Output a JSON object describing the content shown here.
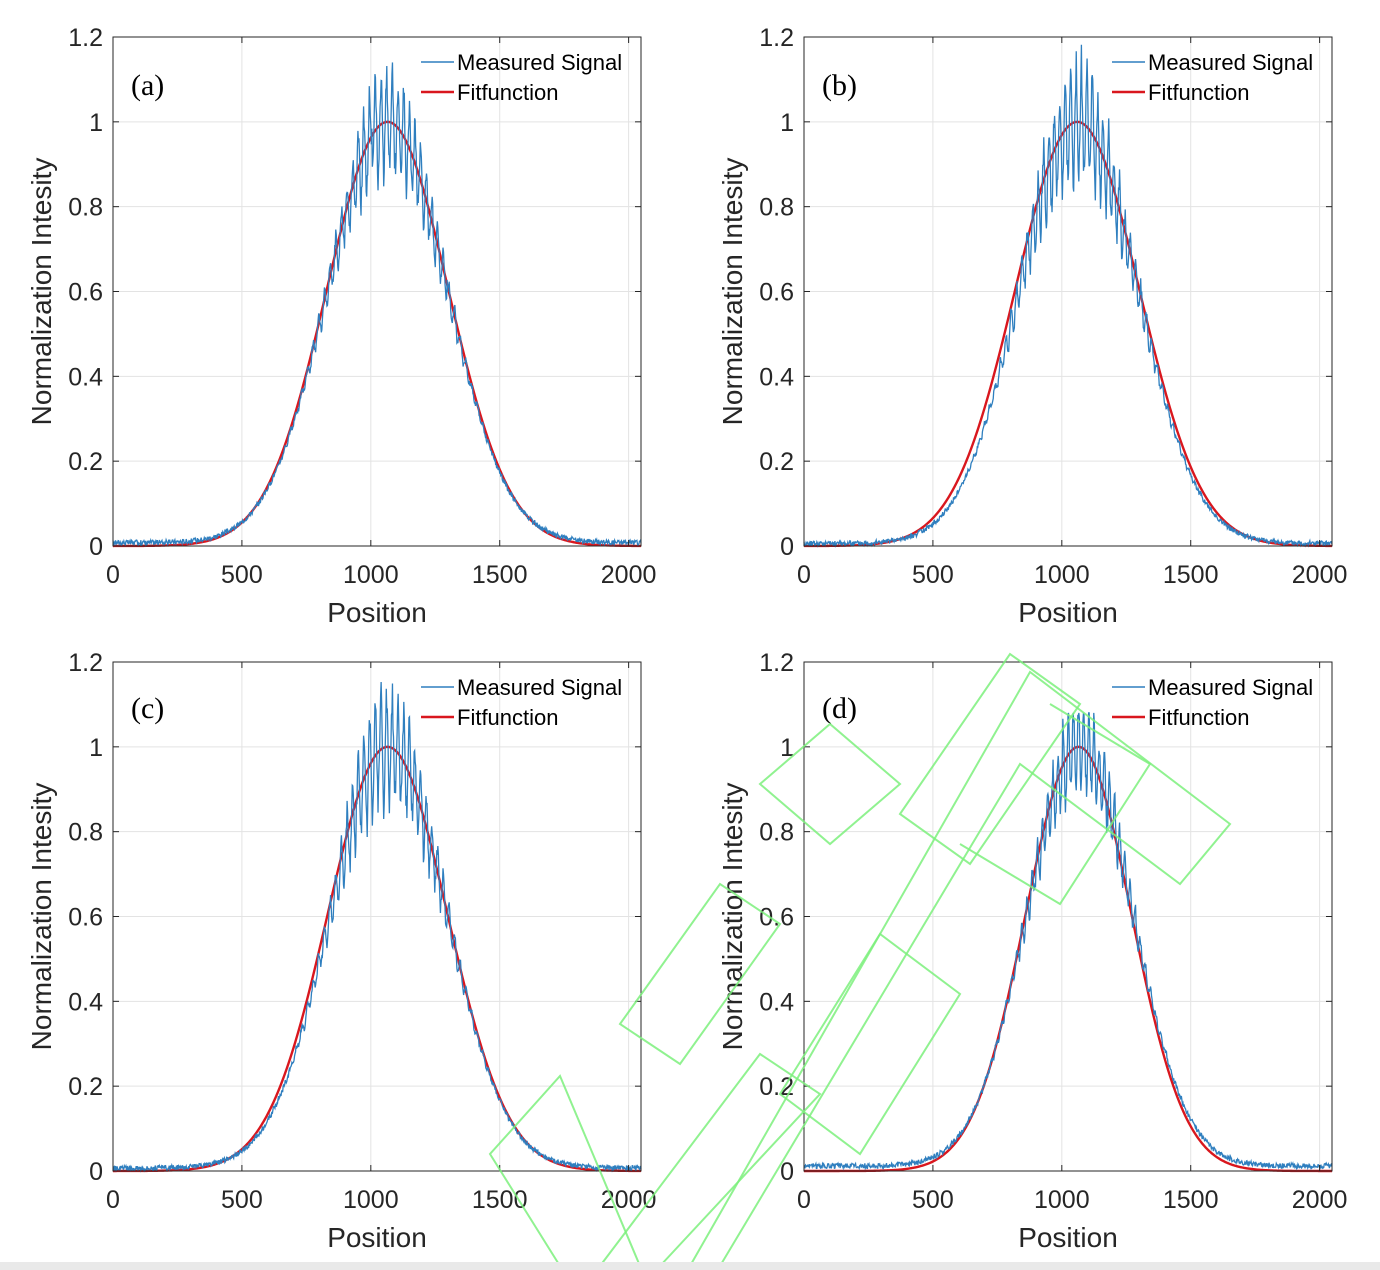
{
  "colors": {
    "measured": "#2f7fbf",
    "fit": "#d9171e",
    "grid": "#e3e3e3",
    "axis": "#262626"
  },
  "chart_data": [
    {
      "type": "line",
      "panel": "(a)",
      "xlabel": "Position",
      "ylabel": "Normalization Intesity",
      "xlim": [
        0,
        2048
      ],
      "ylim": [
        0,
        1.2
      ],
      "xticks": [
        0,
        500,
        1000,
        1500,
        2000
      ],
      "xtick_labels": [
        "0",
        "500",
        "1000",
        "1500",
        "2000"
      ],
      "yticks": [
        0,
        0.2,
        0.4,
        0.6,
        0.8,
        1,
        1.2
      ],
      "ytick_labels": [
        "0",
        "0.2",
        "0.4",
        "0.6",
        "0.8",
        "1",
        "1.2"
      ],
      "grid": true,
      "legend_position": "top-right",
      "series": [
        {
          "name": "Measured Signal",
          "kind": "noisy",
          "center": 1065,
          "sigma": 230,
          "peak": 1.14,
          "ripple": 0.11,
          "period": 22,
          "baseline": 0.008
        },
        {
          "name": "Fitfunction",
          "kind": "gaussian",
          "center": 1065,
          "sigma": 235,
          "peak": 1.0
        }
      ]
    },
    {
      "type": "line",
      "panel": "(b)",
      "xlabel": "Position",
      "ylabel": "Normalization Intesity",
      "xlim": [
        0,
        2048
      ],
      "ylim": [
        0,
        1.2
      ],
      "xticks": [
        0,
        500,
        1000,
        1500,
        2000
      ],
      "xtick_labels": [
        "0",
        "500",
        "1000",
        "1500",
        "2000"
      ],
      "yticks": [
        0,
        0.2,
        0.4,
        0.6,
        0.8,
        1,
        1.2
      ],
      "ytick_labels": [
        "0",
        "0.2",
        "0.4",
        "0.6",
        "0.8",
        "1",
        "1.2"
      ],
      "grid": true,
      "legend_position": "top-right",
      "series": [
        {
          "name": "Measured Signal",
          "kind": "noisy",
          "center": 1065,
          "sigma": 228,
          "peak": 1.2,
          "ripple": 0.13,
          "period": 21,
          "baseline": 0.006
        },
        {
          "name": "Fitfunction",
          "kind": "gaussian",
          "center": 1060,
          "sigma": 240,
          "peak": 1.0
        }
      ]
    },
    {
      "type": "line",
      "panel": "(c)",
      "xlabel": "Position",
      "ylabel": "Normalization Intesity",
      "xlim": [
        0,
        2048
      ],
      "ylim": [
        0,
        1.2
      ],
      "xticks": [
        0,
        500,
        1000,
        1500,
        2000
      ],
      "xtick_labels": [
        "0",
        "500",
        "1000",
        "1500",
        "2000"
      ],
      "yticks": [
        0,
        0.2,
        0.4,
        0.6,
        0.8,
        1,
        1.2
      ],
      "ytick_labels": [
        "0",
        "0.2",
        "0.4",
        "0.6",
        "0.8",
        "1",
        "1.2"
      ],
      "grid": true,
      "legend_position": "top-right",
      "series": [
        {
          "name": "Measured Signal",
          "kind": "noisy",
          "center": 1070,
          "sigma": 225,
          "peak": 1.18,
          "ripple": 0.12,
          "period": 22,
          "baseline": 0.007
        },
        {
          "name": "Fitfunction",
          "kind": "gaussian",
          "center": 1065,
          "sigma": 232,
          "peak": 1.0
        }
      ]
    },
    {
      "type": "line",
      "panel": "(d)",
      "xlabel": "Position",
      "ylabel": "Normalization Intesity",
      "xlim": [
        0,
        2048
      ],
      "ylim": [
        0,
        1.2
      ],
      "xticks": [
        0,
        500,
        1000,
        1500,
        2000
      ],
      "xtick_labels": [
        "0",
        "500",
        "1000",
        "1500",
        "2000"
      ],
      "yticks": [
        0,
        0.2,
        0.4,
        0.6,
        0.8,
        1,
        1.2
      ],
      "ytick_labels": [
        "0",
        "0.2",
        "0.4",
        "0.6",
        "0.8",
        "1",
        "1.2"
      ],
      "grid": true,
      "legend_position": "top-right",
      "series": [
        {
          "name": "Measured Signal",
          "kind": "noisy",
          "center": 1070,
          "sigma": 205,
          "peak": 1.08,
          "ripple": 0.1,
          "period": 20,
          "baseline": 0.012
        },
        {
          "name": "Fitfunction",
          "kind": "gaussian",
          "center": 1065,
          "sigma": 205,
          "peak": 1.0
        }
      ]
    }
  ]
}
